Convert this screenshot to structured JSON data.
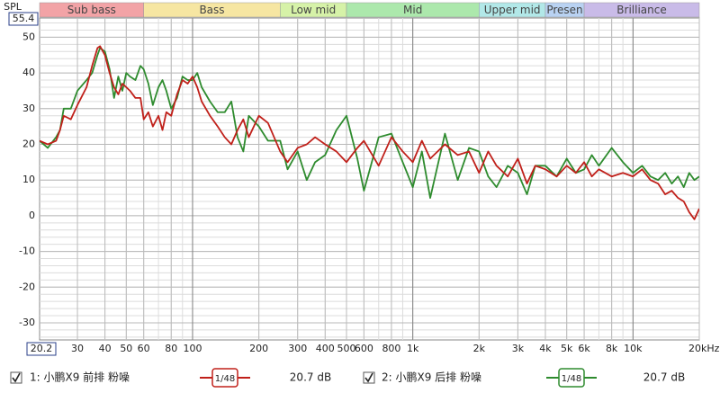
{
  "chart_data": {
    "type": "line",
    "y_label": "SPL",
    "xscale": "log",
    "grid": true,
    "xlim": [
      20.2,
      20000
    ],
    "ylim": [
      -34.8,
      55.4
    ],
    "yticks": [
      50,
      40,
      30,
      20,
      10,
      0,
      -10,
      -20,
      -30
    ],
    "xticks": [
      30,
      40,
      50,
      60,
      80,
      100,
      200,
      300,
      400,
      500,
      600,
      800,
      {
        "value": 1000,
        "label": "1k"
      },
      {
        "value": 2000,
        "label": "2k"
      },
      {
        "value": 3000,
        "label": "3k"
      },
      {
        "value": 4000,
        "label": "4k"
      },
      {
        "value": 5000,
        "label": "5k"
      },
      {
        "value": 6000,
        "label": "6k"
      },
      {
        "value": 8000,
        "label": "8k"
      },
      {
        "value": 10000,
        "label": "10k"
      },
      {
        "value": 20000,
        "label": "20kHz"
      }
    ],
    "bands": [
      {
        "name": "Sub bass",
        "from": 20.2,
        "to": 60,
        "color": "#f2a3a6"
      },
      {
        "name": "Bass",
        "from": 60,
        "to": 250,
        "color": "#f6e6a2"
      },
      {
        "name": "Low mid",
        "from": 250,
        "to": 500,
        "color": "#d6f2a8"
      },
      {
        "name": "Mid",
        "from": 500,
        "to": 2000,
        "color": "#ace8ac"
      },
      {
        "name": "Upper mid",
        "from": 2000,
        "to": 4000,
        "color": "#b2e8e8"
      },
      {
        "name": "Presen",
        "from": 4000,
        "to": 6000,
        "color": "#b9d2f2"
      },
      {
        "name": "Brilliance",
        "from": 6000,
        "to": 20000,
        "color": "#c9bbe8"
      }
    ],
    "x": [
      20.2,
      22,
      24,
      25,
      26,
      28,
      30,
      33,
      35,
      37,
      38,
      40,
      42,
      44,
      46,
      48,
      50,
      52,
      55,
      58,
      60,
      63,
      66,
      70,
      73,
      76,
      80,
      85,
      90,
      95,
      100,
      105,
      110,
      120,
      130,
      140,
      150,
      160,
      170,
      180,
      200,
      220,
      250,
      270,
      300,
      330,
      360,
      400,
      450,
      500,
      560,
      600,
      700,
      800,
      900,
      1000,
      1100,
      1200,
      1400,
      1600,
      1800,
      2000,
      2200,
      2400,
      2700,
      3000,
      3300,
      3600,
      4000,
      4500,
      5000,
      5500,
      6000,
      6500,
      7000,
      8000,
      9000,
      10000,
      11000,
      12000,
      13000,
      14000,
      15000,
      16000,
      17000,
      18000,
      19000,
      20000
    ],
    "series": [
      {
        "name": "1: 小鹏X9 前排 粉噪",
        "color": "#c0201a",
        "smoothing": "1/48",
        "offset": "20.7 dB",
        "values": [
          21,
          20,
          21,
          24,
          28,
          27,
          31,
          36,
          42,
          47,
          47.5,
          45,
          40,
          36,
          34,
          37,
          36,
          35,
          33,
          33,
          27,
          29,
          25,
          28,
          24,
          29,
          28,
          34,
          38,
          37,
          39,
          36,
          32,
          28,
          25,
          22,
          20,
          24,
          27,
          22,
          28,
          26,
          18,
          15,
          19,
          20,
          22,
          20,
          18,
          15,
          19,
          21,
          14,
          22,
          18,
          15,
          21,
          16,
          20,
          17,
          18,
          12,
          18,
          14,
          11,
          16,
          9,
          14,
          13,
          11,
          14,
          12,
          15,
          11,
          13,
          11,
          12,
          11,
          13,
          10,
          9,
          6,
          7,
          5,
          4,
          1,
          -1,
          2
        ]
      },
      {
        "name": "2: 小鹏X9 后排 粉噪",
        "color": "#2e8b2e",
        "smoothing": "1/48",
        "offset": "20.7 dB",
        "values": [
          21,
          19,
          22,
          24,
          30,
          30,
          35,
          38,
          40,
          45,
          47,
          46,
          41,
          33,
          39,
          35,
          40,
          39,
          38,
          42,
          41,
          37,
          31,
          36,
          38,
          35,
          30,
          33,
          39,
          38,
          38,
          40,
          36,
          32,
          29,
          29,
          32,
          22,
          18,
          28,
          25,
          21,
          21,
          13,
          18,
          10,
          15,
          17,
          24,
          28,
          16,
          7,
          22,
          23,
          15,
          8,
          18,
          5,
          23,
          10,
          19,
          18,
          11,
          8,
          14,
          12,
          6,
          14,
          14,
          11,
          16,
          12,
          13,
          17,
          14,
          19,
          15,
          12,
          14,
          11,
          10,
          12,
          9,
          11,
          8,
          12,
          10,
          11
        ]
      }
    ]
  }
}
